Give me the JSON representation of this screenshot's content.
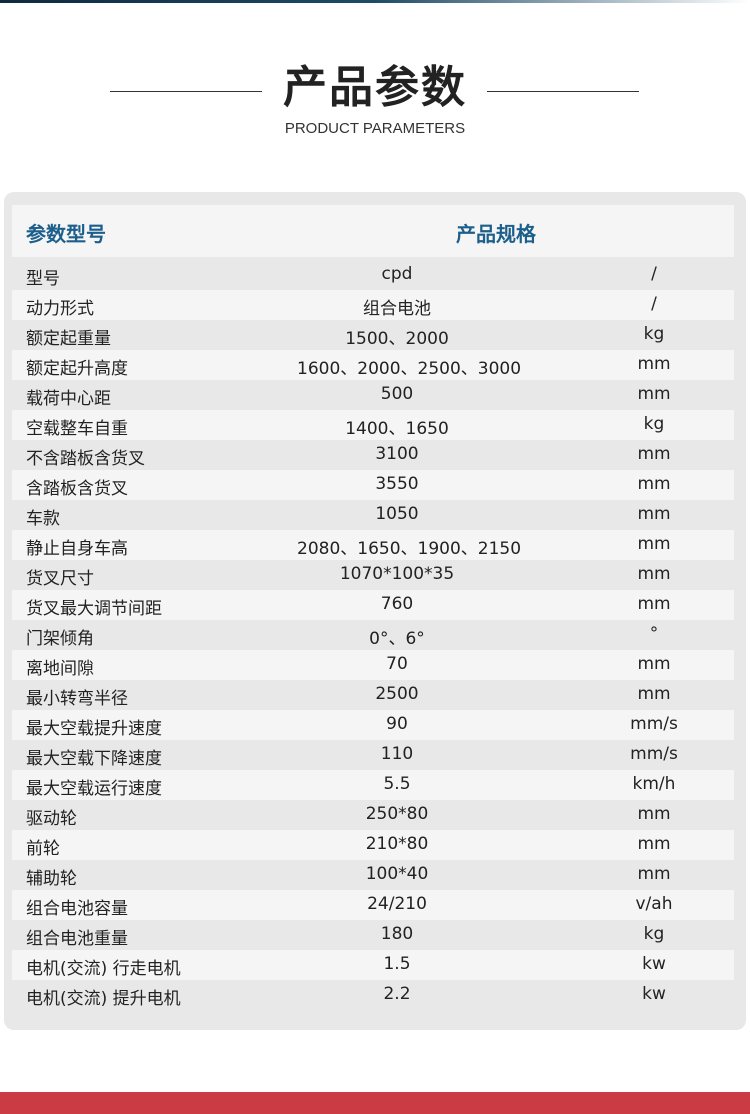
{
  "header": {
    "title": "产品参数",
    "subtitle": "PRODUCT PARAMETERS"
  },
  "table": {
    "columns": [
      "参数型号",
      "产品规格"
    ],
    "rows": [
      {
        "name": "型号",
        "value": "cpd",
        "unit": "/"
      },
      {
        "name": "动力形式",
        "value": "组合电池",
        "unit": "/"
      },
      {
        "name": "额定起重量",
        "value": "1500、2000",
        "unit": "kg"
      },
      {
        "name": "额定起升高度",
        "value": "1600、2000、2500、3000",
        "unit": "mm"
      },
      {
        "name": "载荷中心距",
        "value": "500",
        "unit": "mm"
      },
      {
        "name": "空载整车自重",
        "value": "1400、1650",
        "unit": "kg"
      },
      {
        "name": "不含踏板含货叉",
        "value": "3100",
        "unit": "mm"
      },
      {
        "name": "含踏板含货叉",
        "value": "3550",
        "unit": "mm"
      },
      {
        "name": "车款",
        "value": "1050",
        "unit": "mm"
      },
      {
        "name": "静止自身车高",
        "value": "2080、1650、1900、2150",
        "unit": "mm"
      },
      {
        "name": "货叉尺寸",
        "value": "1070*100*35",
        "unit": "mm"
      },
      {
        "name": "货叉最大调节间距",
        "value": "760",
        "unit": "mm"
      },
      {
        "name": "门架倾角",
        "value": "0°、6°",
        "unit": "°"
      },
      {
        "name": "离地间隙",
        "value": "70",
        "unit": "mm"
      },
      {
        "name": "最小转弯半径",
        "value": "2500",
        "unit": "mm"
      },
      {
        "name": "最大空载提升速度",
        "value": "90",
        "unit": "mm/s"
      },
      {
        "name": "最大空载下降速度",
        "value": "110",
        "unit": "mm/s"
      },
      {
        "name": "最大空载运行速度",
        "value": "5.5",
        "unit": "km/h"
      },
      {
        "name": "驱动轮",
        "value": "250*80",
        "unit": "mm"
      },
      {
        "name": "前轮",
        "value": "210*80",
        "unit": "mm"
      },
      {
        "name": "辅助轮",
        "value": "100*40",
        "unit": "mm"
      },
      {
        "name": "组合电池容量",
        "value": "24/210",
        "unit": "v/ah"
      },
      {
        "name": "组合电池重量",
        "value": "180",
        "unit": "kg"
      },
      {
        "name": "电机(交流) 行走电机",
        "value": "1.5",
        "unit": "kw"
      },
      {
        "name": "电机(交流) 提升电机",
        "value": "2.2",
        "unit": "kw"
      }
    ]
  },
  "colors": {
    "accent": "#1c5f8c",
    "footer": "#cb3b44",
    "card": "#e8e8e8",
    "row_alt": "#f5f5f5"
  }
}
